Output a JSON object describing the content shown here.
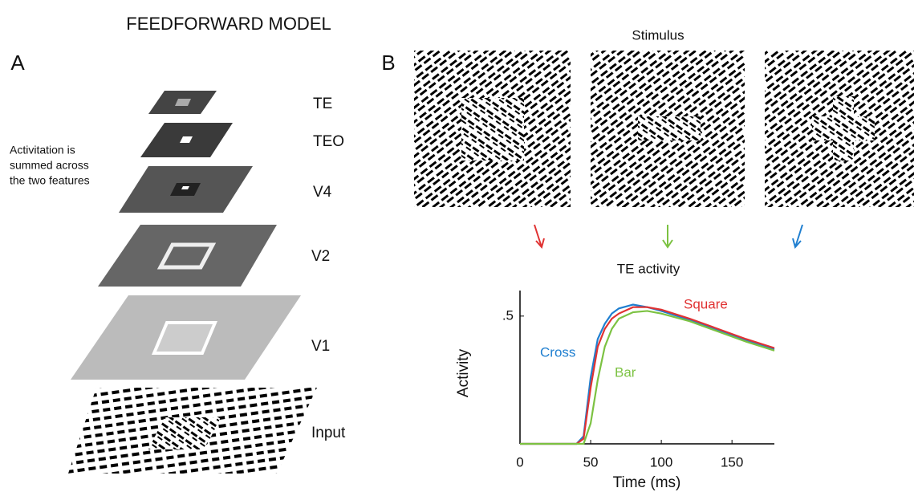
{
  "figure": {
    "title": "FEEDFORWARD MODEL",
    "panel_a": {
      "label": "A",
      "note": [
        "Activitation is",
        "summed across",
        "the two features"
      ],
      "layers": [
        "TE",
        "TEO",
        "V4",
        "V2",
        "V1",
        "Input"
      ]
    },
    "panel_b": {
      "label": "B",
      "stimulus_title": "Stimulus"
    }
  },
  "chart_data": {
    "type": "line",
    "title": "TE activity",
    "x_label": "Time (ms)",
    "y_label": "Activity",
    "x": [
      0,
      40,
      45,
      50,
      55,
      60,
      65,
      70,
      80,
      90,
      100,
      120,
      140,
      160,
      180
    ],
    "series": [
      {
        "name": "Cross",
        "color": "#1f7fd0",
        "values": [
          0,
          0,
          0.03,
          0.26,
          0.41,
          0.47,
          0.51,
          0.53,
          0.545,
          0.535,
          0.52,
          0.485,
          0.445,
          0.405,
          0.37
        ]
      },
      {
        "name": "Square",
        "color": "#e03232",
        "values": [
          0,
          0,
          0.02,
          0.22,
          0.38,
          0.45,
          0.49,
          0.51,
          0.535,
          0.535,
          0.525,
          0.49,
          0.45,
          0.41,
          0.375
        ]
      },
      {
        "name": "Bar",
        "color": "#7cc242",
        "values": [
          0,
          0,
          0,
          0.08,
          0.25,
          0.38,
          0.45,
          0.49,
          0.515,
          0.52,
          0.51,
          0.48,
          0.44,
          0.4,
          0.365
        ]
      }
    ],
    "xlim": [
      0,
      180
    ],
    "ylim": [
      0,
      0.6
    ],
    "xticks": [
      0,
      50,
      100,
      150
    ],
    "yticks": [
      {
        "value": 0.5,
        "label": ".5"
      }
    ]
  }
}
